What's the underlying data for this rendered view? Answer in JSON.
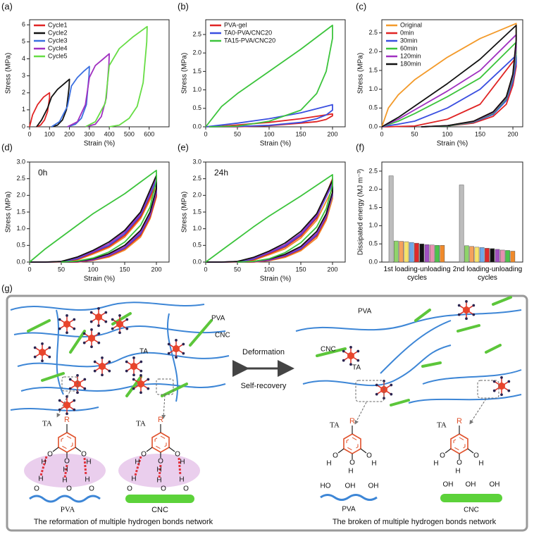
{
  "chart_data": [
    {
      "type": "line",
      "label": "(a)",
      "xlabel": "Strain (%)",
      "ylabel": "Stress (MPa)",
      "legend": "upper left",
      "xlim": [
        0,
        700
      ],
      "xticks": [
        0,
        100,
        200,
        300,
        400,
        500,
        600
      ],
      "ylim": [
        0,
        6.3
      ],
      "yticks": [
        0,
        1,
        2,
        3,
        4,
        5,
        6
      ],
      "series": [
        {
          "name": "Cycle1",
          "color": "#e02424",
          "x": [
            0,
            15,
            40,
            70,
            100,
            100,
            90,
            75,
            55,
            35
          ],
          "values": [
            0,
            0.7,
            1.3,
            1.75,
            2.0,
            1.7,
            0.9,
            0.4,
            0.1,
            0
          ]
        },
        {
          "name": "Cycle2",
          "color": "#111111",
          "x": [
            35,
            60,
            90,
            110,
            140,
            170,
            200,
            198,
            185,
            165,
            140,
            110
          ],
          "values": [
            0,
            0.4,
            1.1,
            1.75,
            2.2,
            2.5,
            2.8,
            2.3,
            1.0,
            0.4,
            0.1,
            0
          ]
        },
        {
          "name": "Cycle3",
          "color": "#3a6fe0",
          "x": [
            110,
            150,
            190,
            210,
            240,
            270,
            300,
            298,
            285,
            260,
            230,
            190
          ],
          "values": [
            0,
            0.3,
            1.2,
            2.4,
            2.9,
            3.25,
            3.55,
            3.0,
            1.3,
            0.5,
            0.15,
            0
          ]
        },
        {
          "name": "Cycle4",
          "color": "#a030c0",
          "x": [
            190,
            240,
            280,
            300,
            330,
            370,
            400,
            398,
            385,
            360,
            330,
            280
          ],
          "values": [
            0,
            0.3,
            1.3,
            2.9,
            3.6,
            4.0,
            4.3,
            3.7,
            1.7,
            0.6,
            0.15,
            0
          ]
        },
        {
          "name": "Cycle5",
          "color": "#66dd44",
          "x": [
            280,
            330,
            380,
            400,
            450,
            520,
            590,
            588,
            570,
            540,
            500,
            450,
            400
          ],
          "values": [
            0,
            0.3,
            1.4,
            3.6,
            4.6,
            5.3,
            5.9,
            5.0,
            2.6,
            1.2,
            0.5,
            0.1,
            0
          ]
        }
      ]
    },
    {
      "type": "line",
      "label": "(b)",
      "xlabel": "Strain (%)",
      "ylabel": "Stress (MPa)",
      "legend": "upper left",
      "xlim": [
        0,
        220
      ],
      "xticks": [
        0,
        50,
        100,
        150,
        200
      ],
      "ylim": [
        0,
        2.9
      ],
      "yticks": [
        {
          "value": 0,
          "label": "0.0"
        },
        0.5,
        {
          "value": 1,
          "label": "1.0"
        },
        1.5,
        {
          "value": 2,
          "label": "2.0"
        },
        2.5
      ],
      "x": [
        0,
        25,
        50,
        100,
        150,
        200,
        200,
        190,
        175,
        150,
        100,
        50,
        5
      ],
      "series": [
        {
          "name": "PVA-gel",
          "color": "#e02424",
          "values": [
            0,
            0.02,
            0.05,
            0.12,
            0.22,
            0.35,
            0.3,
            0.2,
            0.14,
            0.1,
            0.03,
            0,
            0
          ]
        },
        {
          "name": "TA0-PVA/CNC20",
          "color": "#3a4fe0",
          "values": [
            0,
            0.05,
            0.1,
            0.22,
            0.38,
            0.6,
            0.45,
            0.32,
            0.22,
            0.12,
            0.04,
            0.01,
            0
          ]
        },
        {
          "name": "TA15-PVA/CNC20",
          "color": "#3cc43c",
          "values": [
            0,
            0.55,
            0.9,
            1.5,
            2.1,
            2.75,
            2.4,
            1.5,
            0.9,
            0.45,
            0.15,
            0.02,
            0
          ]
        }
      ]
    },
    {
      "type": "line",
      "label": "(c)",
      "xlabel": "Strain (%)",
      "ylabel": "Stress (MPa)",
      "legend": "upper left",
      "xlim": [
        0,
        215
      ],
      "xticks": [
        0,
        50,
        100,
        150,
        200
      ],
      "ylim": [
        0,
        2.85
      ],
      "yticks": [
        {
          "value": 0,
          "label": "0.0"
        },
        0.5,
        {
          "value": 1,
          "label": "1.0"
        },
        1.5,
        {
          "value": 2,
          "label": "2.0"
        },
        2.5
      ],
      "x": [
        0,
        10,
        25,
        50,
        100,
        150,
        205,
        205,
        200,
        190,
        170,
        140,
        100,
        60
      ],
      "series": [
        {
          "name": "Original",
          "color": "#f39a2a",
          "values": [
            0,
            0.5,
            0.85,
            1.25,
            1.85,
            2.35,
            2.75,
            2.3,
            1.4,
            0.8,
            0.4,
            0.15,
            0.03,
            0
          ]
        },
        {
          "name": "0min",
          "color": "#e02424",
          "values": [
            0,
            0,
            0.01,
            0.02,
            0.2,
            0.6,
            1.85,
            1.6,
            1.1,
            0.6,
            0.28,
            0.1,
            0.02,
            0
          ]
        },
        {
          "name": "30min",
          "color": "#3a4fe0",
          "values": [
            0,
            0.03,
            0.07,
            0.15,
            0.5,
            1.0,
            1.9,
            1.7,
            1.2,
            0.7,
            0.33,
            0.12,
            0.02,
            0
          ]
        },
        {
          "name": "60min",
          "color": "#3cc43c",
          "values": [
            0,
            0.06,
            0.15,
            0.35,
            0.8,
            1.3,
            2.25,
            1.95,
            1.3,
            0.75,
            0.36,
            0.13,
            0.02,
            0
          ]
        },
        {
          "name": "120min",
          "color": "#a030c0",
          "values": [
            0,
            0.08,
            0.2,
            0.45,
            0.95,
            1.5,
            2.45,
            2.1,
            1.35,
            0.78,
            0.38,
            0.14,
            0.03,
            0
          ]
        },
        {
          "name": "180min",
          "color": "#111111",
          "values": [
            0,
            0.1,
            0.25,
            0.55,
            1.15,
            1.8,
            2.7,
            2.3,
            1.4,
            0.8,
            0.4,
            0.15,
            0.03,
            0
          ]
        }
      ]
    },
    {
      "type": "line",
      "label": "(d)",
      "annotation": "0h",
      "xlabel": "Strain (%)",
      "ylabel": "Stress (MPa)",
      "xlim": [
        0,
        220
      ],
      "xticks": [
        0,
        50,
        100,
        150,
        200
      ],
      "ylim": [
        0,
        3.0
      ],
      "yticks": [
        {
          "value": 0,
          "label": "0.0"
        },
        0.5,
        {
          "value": 1,
          "label": "1.0"
        },
        1.5,
        {
          "value": 2,
          "label": "2.0"
        },
        2.5,
        {
          "value": 3,
          "label": "3.0"
        }
      ],
      "x": [
        0,
        25,
        50,
        75,
        100,
        125,
        150,
        175,
        200,
        200,
        190,
        175,
        150,
        125,
        100,
        75,
        50
      ],
      "series": [
        {
          "color": "#f08a2a",
          "values": [
            0,
            0,
            0,
            0.06,
            0.24,
            0.43,
            0.75,
            1.3,
            2.25,
            1.95,
            1.3,
            0.75,
            0.36,
            0.15,
            0.05,
            0,
            0
          ]
        },
        {
          "color": "#e02424",
          "values": [
            0,
            0,
            0.01,
            0.08,
            0.27,
            0.47,
            0.8,
            1.35,
            2.35,
            2.0,
            1.35,
            0.8,
            0.4,
            0.18,
            0.06,
            0,
            0
          ]
        },
        {
          "color": "#3a4fe0",
          "values": [
            0,
            0,
            0.01,
            0.1,
            0.3,
            0.5,
            0.85,
            1.4,
            2.45,
            2.1,
            1.4,
            0.85,
            0.42,
            0.2,
            0.07,
            0.01,
            0
          ]
        },
        {
          "color": "#a030c0",
          "values": [
            0,
            0,
            0.02,
            0.13,
            0.32,
            0.55,
            0.9,
            1.45,
            2.55,
            2.15,
            1.45,
            0.9,
            0.45,
            0.22,
            0.08,
            0.01,
            0
          ]
        },
        {
          "color": "#111111",
          "values": [
            0,
            0,
            0.02,
            0.15,
            0.35,
            0.6,
            0.95,
            1.5,
            2.6,
            2.2,
            1.5,
            0.95,
            0.5,
            0.25,
            0.1,
            0.02,
            0
          ]
        },
        {
          "color": "#3cc43c",
          "values": [
            0,
            0.4,
            0.75,
            1.1,
            1.45,
            1.75,
            2.05,
            2.4,
            2.75,
            2.45,
            1.65,
            1.1,
            0.6,
            0.3,
            0.12,
            0.03,
            0
          ]
        }
      ]
    },
    {
      "type": "line",
      "label": "(e)",
      "annotation": "24h",
      "xlabel": "Strain (%)",
      "ylabel": "Stress (MPa)",
      "xlim": [
        0,
        220
      ],
      "xticks": [
        0,
        50,
        100,
        150,
        200
      ],
      "ylim": [
        0,
        3.0
      ],
      "yticks": [
        {
          "value": 0,
          "label": "0.0"
        },
        0.5,
        {
          "value": 1,
          "label": "1.0"
        },
        1.5,
        {
          "value": 2,
          "label": "2.0"
        },
        2.5,
        {
          "value": 3,
          "label": "3.0"
        }
      ],
      "x": [
        0,
        25,
        50,
        75,
        100,
        125,
        150,
        175,
        200,
        200,
        190,
        175,
        150,
        125,
        100,
        75,
        50
      ],
      "series": [
        {
          "color": "#f08a2a",
          "values": [
            0,
            0,
            0,
            0.05,
            0.22,
            0.4,
            0.72,
            1.25,
            2.2,
            1.9,
            1.25,
            0.72,
            0.34,
            0.14,
            0.04,
            0,
            0
          ]
        },
        {
          "color": "#e02424",
          "values": [
            0,
            0,
            0.01,
            0.07,
            0.25,
            0.45,
            0.78,
            1.32,
            2.5,
            2.05,
            1.32,
            0.78,
            0.38,
            0.17,
            0.05,
            0,
            0
          ]
        },
        {
          "color": "#3a4fe0",
          "values": [
            0,
            0,
            0.01,
            0.09,
            0.28,
            0.48,
            0.82,
            1.37,
            2.35,
            2.0,
            1.37,
            0.82,
            0.4,
            0.19,
            0.06,
            0.01,
            0
          ]
        },
        {
          "color": "#a030c0",
          "values": [
            0,
            0,
            0.02,
            0.12,
            0.3,
            0.52,
            0.86,
            1.4,
            2.4,
            2.05,
            1.4,
            0.86,
            0.43,
            0.21,
            0.07,
            0.01,
            0
          ]
        },
        {
          "color": "#111111",
          "values": [
            0,
            0,
            0.02,
            0.14,
            0.33,
            0.57,
            0.92,
            1.45,
            2.45,
            2.1,
            1.45,
            0.92,
            0.47,
            0.23,
            0.09,
            0.02,
            0
          ]
        },
        {
          "color": "#3cc43c",
          "values": [
            0,
            0.35,
            0.7,
            1.05,
            1.38,
            1.68,
            1.98,
            2.3,
            2.62,
            2.3,
            1.6,
            1.05,
            0.58,
            0.28,
            0.1,
            0.02,
            0
          ]
        }
      ]
    },
    {
      "type": "bar",
      "label": "(f)",
      "ylabel": "Dissipated energy (MJ m⁻³)",
      "categories": [
        "1st loading-unloading cycles",
        "2nd loading-unloading cycles"
      ],
      "ylim": [
        0,
        2.75
      ],
      "yticks": [
        {
          "value": 0,
          "label": "0.0"
        },
        0.5,
        {
          "value": 1,
          "label": "1.0"
        },
        1.5,
        {
          "value": 2,
          "label": "2.0"
        },
        2.5
      ],
      "series": [
        {
          "color": "#bdbdbd",
          "values": [
            2.37,
            2.12
          ]
        },
        {
          "color": "#8fd46a",
          "values": [
            0.58,
            0.45
          ]
        },
        {
          "color": "#f5a15c",
          "values": [
            0.57,
            0.43
          ]
        },
        {
          "color": "#f7e36a",
          "values": [
            0.56,
            0.41
          ]
        },
        {
          "color": "#6ea8e8",
          "values": [
            0.54,
            0.4
          ]
        },
        {
          "color": "#e02a2a",
          "values": [
            0.52,
            0.38
          ]
        },
        {
          "color": "#111111",
          "values": [
            0.5,
            0.37
          ]
        },
        {
          "color": "#a04fc0",
          "values": [
            0.48,
            0.35
          ]
        },
        {
          "color": "#e88fb0",
          "values": [
            0.47,
            0.33
          ]
        },
        {
          "color": "#4cc34c",
          "values": [
            0.46,
            0.32
          ]
        },
        {
          "color": "#f08a2a",
          "values": [
            0.46,
            0.3
          ]
        }
      ]
    }
  ],
  "diagram": {
    "label": "(g)",
    "left": {
      "pva": "PVA",
      "cnc": "CNC",
      "ta": "TA"
    },
    "arrow": {
      "top": "Deformation",
      "bottom": "Self-recovery"
    },
    "right": {
      "pva": "PVA",
      "cnc": "CNC",
      "ta": "TA"
    },
    "detail": {
      "ta": "TA",
      "r": "R",
      "o": "O",
      "h": "H",
      "ho": "HO",
      "oh": "OH",
      "pva": "PVA",
      "cnc": "CNC"
    },
    "captions": [
      "The reformation of multiple hydrogen bonds network",
      "The broken of multiple hydrogen bonds network"
    ]
  }
}
